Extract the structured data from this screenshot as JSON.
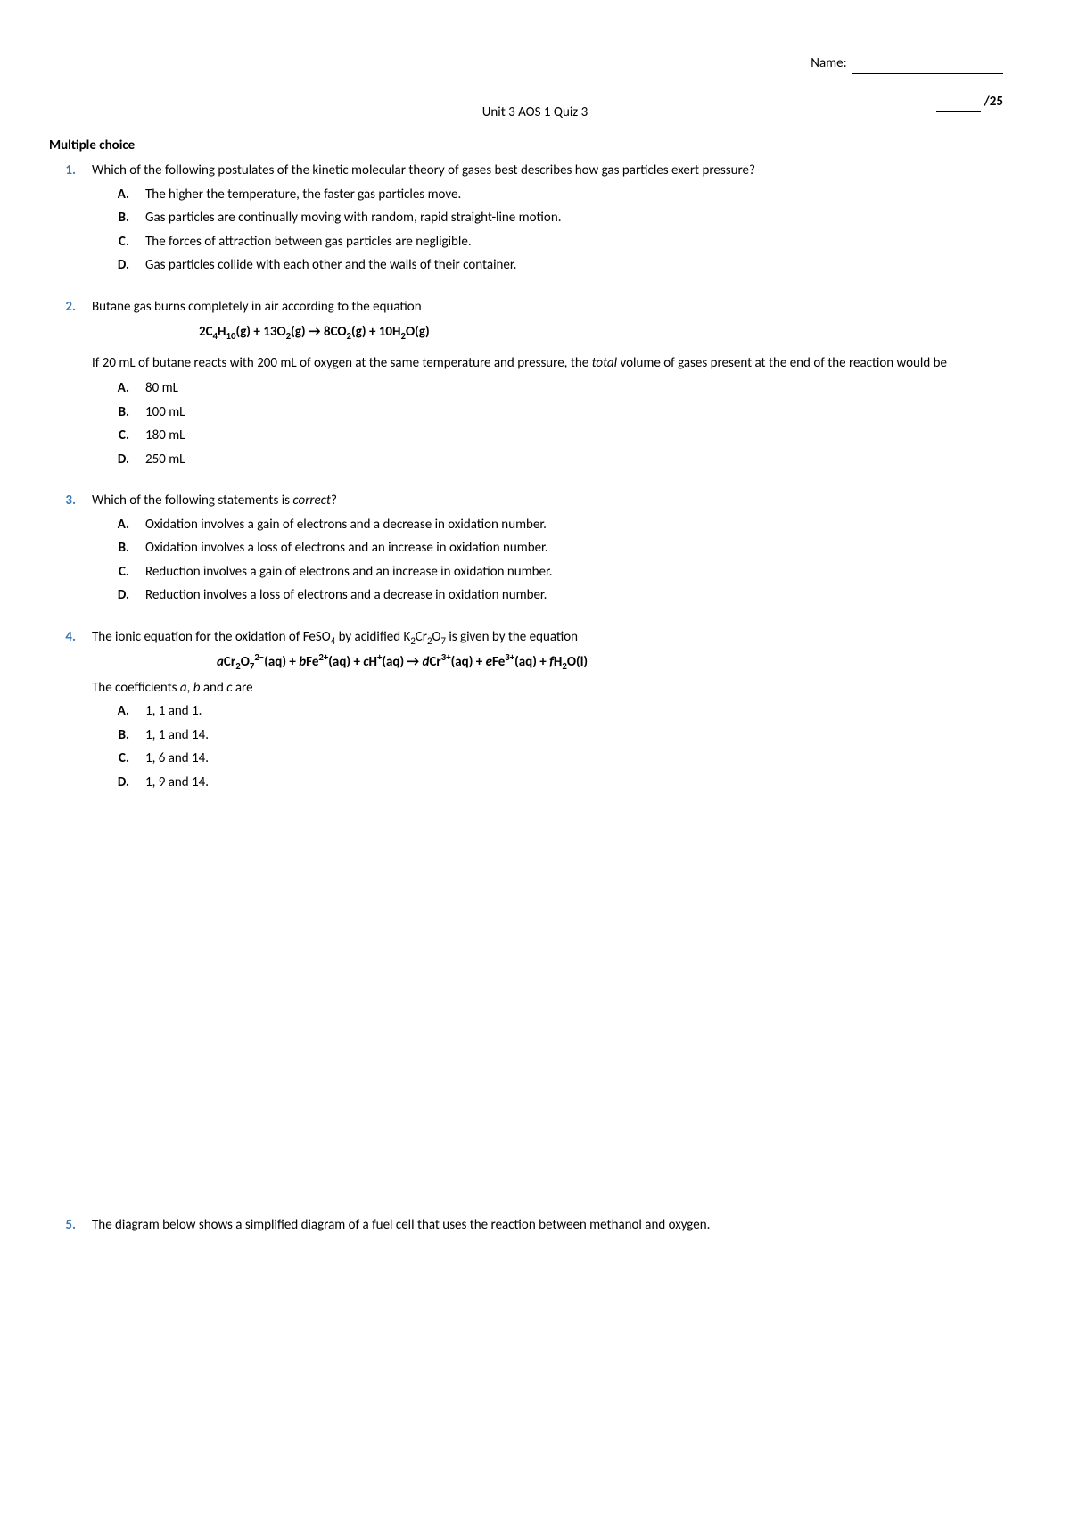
{
  "header": {
    "name_label": "Name:",
    "score_total": "/25"
  },
  "title": "Unit 3 AOS 1 Quiz 3",
  "section_heading": "Multiple choice",
  "q1": {
    "num": "1.",
    "text": "Which of the following postulates of the kinetic molecular theory of gases best describes how gas particles exert pressure?",
    "A": "The higher the temperature, the faster gas particles move.",
    "B": "Gas particles are continually moving with random, rapid straight-line motion.",
    "C": "The forces of attraction between gas particles are negligible.",
    "D": "Gas particles collide with each other and the walls of their container."
  },
  "q2": {
    "num": "2.",
    "text": "Butane gas burns completely in air according to the equation",
    "followup_a": "If 20 mL of butane reacts with 200 mL of oxygen at the same temperature and pressure, the ",
    "followup_ital": "total",
    "followup_b": " volume of gases present at the end of the reaction would be",
    "A": "80 mL",
    "B": "100 mL",
    "C": "180 mL",
    "D": "250 mL"
  },
  "q3": {
    "num": "3.",
    "text_a": "Which of the following statements is ",
    "text_ital": "correct",
    "text_b": "?",
    "A": "Oxidation involves a gain of electrons and a decrease in oxidation number.",
    "B": "Oxidation involves a loss of electrons and an increase in oxidation number.",
    "C": "Reduction involves a gain of electrons and an increase in oxidation number.",
    "D": "Reduction involves a loss of electrons and a decrease in oxidation number."
  },
  "q4": {
    "num": "4.",
    "coeff_a": "The coefficients ",
    "coeff_b": " and ",
    "coeff_c": " are",
    "A": "1, 1 and 1.",
    "B": "1, 1 and 14.",
    "C": "1, 6 and 14.",
    "D": "1, 9 and 14."
  },
  "q5": {
    "num": "5.",
    "text": "The diagram below shows a simplified diagram of a fuel cell that uses the reaction between methanol and oxygen."
  },
  "labels": {
    "A": "A.",
    "B": "B.",
    "C": "C.",
    "D": "D."
  }
}
